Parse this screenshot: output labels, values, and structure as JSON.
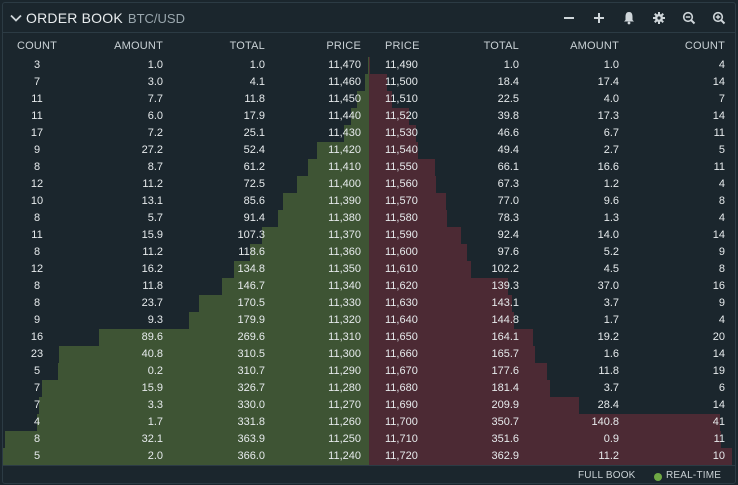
{
  "header": {
    "title": "ORDER BOOK",
    "pair": "BTC/USD"
  },
  "colors": {
    "bid_bar": "#3e5434",
    "ask_bar": "#4c2a34",
    "realtime_dot": "#6fa844"
  },
  "bids": {
    "headers": {
      "count": "COUNT",
      "amount": "AMOUNT",
      "total": "TOTAL",
      "price": "PRICE"
    },
    "rows": [
      {
        "count": "3",
        "amount": "1.0",
        "total": "1.0",
        "price": "11,470"
      },
      {
        "count": "7",
        "amount": "3.0",
        "total": "4.1",
        "price": "11,460"
      },
      {
        "count": "11",
        "amount": "7.7",
        "total": "11.8",
        "price": "11,450"
      },
      {
        "count": "11",
        "amount": "6.0",
        "total": "17.9",
        "price": "11,440"
      },
      {
        "count": "17",
        "amount": "7.2",
        "total": "25.1",
        "price": "11,430"
      },
      {
        "count": "9",
        "amount": "27.2",
        "total": "52.4",
        "price": "11,420"
      },
      {
        "count": "8",
        "amount": "8.7",
        "total": "61.2",
        "price": "11,410"
      },
      {
        "count": "12",
        "amount": "11.2",
        "total": "72.5",
        "price": "11,400"
      },
      {
        "count": "10",
        "amount": "13.1",
        "total": "85.6",
        "price": "11,390"
      },
      {
        "count": "8",
        "amount": "5.7",
        "total": "91.4",
        "price": "11,380"
      },
      {
        "count": "11",
        "amount": "15.9",
        "total": "107.3",
        "price": "11,370"
      },
      {
        "count": "8",
        "amount": "11.2",
        "total": "118.6",
        "price": "11,360"
      },
      {
        "count": "12",
        "amount": "16.2",
        "total": "134.8",
        "price": "11,350"
      },
      {
        "count": "8",
        "amount": "11.8",
        "total": "146.7",
        "price": "11,340"
      },
      {
        "count": "8",
        "amount": "23.7",
        "total": "170.5",
        "price": "11,330"
      },
      {
        "count": "9",
        "amount": "9.3",
        "total": "179.9",
        "price": "11,320"
      },
      {
        "count": "16",
        "amount": "89.6",
        "total": "269.6",
        "price": "11,310"
      },
      {
        "count": "23",
        "amount": "40.8",
        "total": "310.5",
        "price": "11,300"
      },
      {
        "count": "5",
        "amount": "0.2",
        "total": "310.7",
        "price": "11,290"
      },
      {
        "count": "7",
        "amount": "15.9",
        "total": "326.7",
        "price": "11,280"
      },
      {
        "count": "7",
        "amount": "3.3",
        "total": "330.0",
        "price": "11,270"
      },
      {
        "count": "4",
        "amount": "1.7",
        "total": "331.8",
        "price": "11,260"
      },
      {
        "count": "8",
        "amount": "32.1",
        "total": "363.9",
        "price": "11,250"
      },
      {
        "count": "5",
        "amount": "2.0",
        "total": "366.0",
        "price": "11,240"
      }
    ]
  },
  "asks": {
    "headers": {
      "price": "PRICE",
      "total": "TOTAL",
      "amount": "AMOUNT",
      "count": "COUNT"
    },
    "rows": [
      {
        "price": "11,490",
        "total": "1.0",
        "amount": "1.0",
        "count": "4"
      },
      {
        "price": "11,500",
        "total": "18.4",
        "amount": "17.4",
        "count": "14"
      },
      {
        "price": "11,510",
        "total": "22.5",
        "amount": "4.0",
        "count": "7"
      },
      {
        "price": "11,520",
        "total": "39.8",
        "amount": "17.3",
        "count": "14"
      },
      {
        "price": "11,530",
        "total": "46.6",
        "amount": "6.7",
        "count": "11"
      },
      {
        "price": "11,540",
        "total": "49.4",
        "amount": "2.7",
        "count": "5"
      },
      {
        "price": "11,550",
        "total": "66.1",
        "amount": "16.6",
        "count": "11"
      },
      {
        "price": "11,560",
        "total": "67.3",
        "amount": "1.2",
        "count": "4"
      },
      {
        "price": "11,570",
        "total": "77.0",
        "amount": "9.6",
        "count": "8"
      },
      {
        "price": "11,580",
        "total": "78.3",
        "amount": "1.3",
        "count": "4"
      },
      {
        "price": "11,590",
        "total": "92.4",
        "amount": "14.0",
        "count": "14"
      },
      {
        "price": "11,600",
        "total": "97.6",
        "amount": "5.2",
        "count": "9"
      },
      {
        "price": "11,610",
        "total": "102.2",
        "amount": "4.5",
        "count": "8"
      },
      {
        "price": "11,620",
        "total": "139.3",
        "amount": "37.0",
        "count": "16"
      },
      {
        "price": "11,630",
        "total": "143.1",
        "amount": "3.7",
        "count": "9"
      },
      {
        "price": "11,640",
        "total": "144.8",
        "amount": "1.7",
        "count": "4"
      },
      {
        "price": "11,650",
        "total": "164.1",
        "amount": "19.2",
        "count": "20"
      },
      {
        "price": "11,660",
        "total": "165.7",
        "amount": "1.6",
        "count": "14"
      },
      {
        "price": "11,670",
        "total": "177.6",
        "amount": "11.8",
        "count": "19"
      },
      {
        "price": "11,680",
        "total": "181.4",
        "amount": "3.7",
        "count": "6"
      },
      {
        "price": "11,690",
        "total": "209.9",
        "amount": "28.4",
        "count": "14"
      },
      {
        "price": "11,700",
        "total": "350.7",
        "amount": "140.8",
        "count": "41"
      },
      {
        "price": "11,710",
        "total": "351.6",
        "amount": "0.9",
        "count": "11"
      },
      {
        "price": "11,720",
        "total": "362.9",
        "amount": "11.2",
        "count": "10"
      }
    ]
  },
  "footer": {
    "full_book": "FULL BOOK",
    "realtime": "REAL-TIME"
  }
}
